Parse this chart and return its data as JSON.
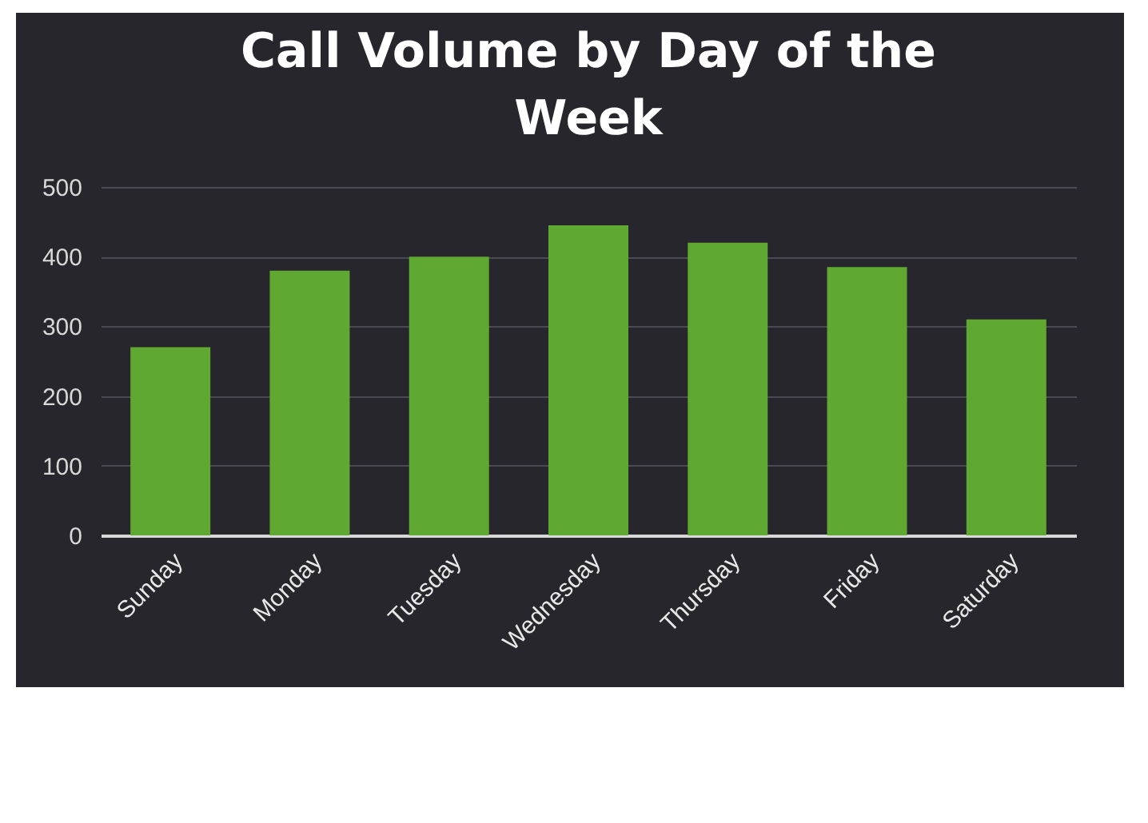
{
  "chart_data": {
    "type": "bar",
    "title": "Call Volume by Day of the Week",
    "categories": [
      "Sunday",
      "Monday",
      "Tuesday",
      "Wednesday",
      "Thursday",
      "Friday",
      "Saturday"
    ],
    "values": [
      270,
      380,
      400,
      445,
      420,
      385,
      310
    ],
    "color": "#5fa832",
    "ylim": [
      0,
      500
    ],
    "yticks": [
      0,
      100,
      200,
      300,
      400,
      500
    ],
    "grid": "y"
  }
}
